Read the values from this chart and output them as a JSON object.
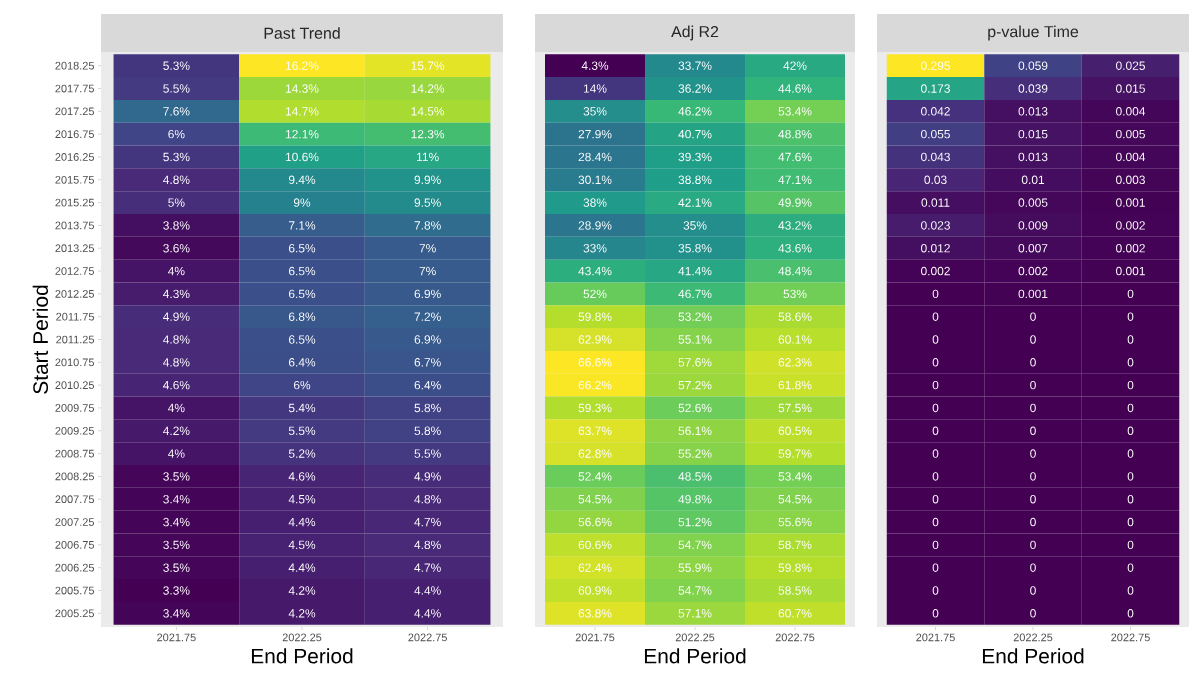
{
  "chart_data": [
    {
      "type": "heatmap",
      "title": "Past Trend",
      "xlabel": "End Period",
      "ylabel": "Start Period",
      "categories": [
        "2021.75",
        "2022.25",
        "2022.75"
      ],
      "y_categories": [
        "2018.25",
        "2017.75",
        "2017.25",
        "2016.75",
        "2016.25",
        "2015.75",
        "2015.25",
        "2013.75",
        "2013.25",
        "2012.75",
        "2012.25",
        "2011.75",
        "2011.25",
        "2010.75",
        "2010.25",
        "2009.75",
        "2009.25",
        "2008.75",
        "2008.25",
        "2007.75",
        "2007.25",
        "2006.75",
        "2006.25",
        "2005.75",
        "2005.25"
      ],
      "cells": [
        [
          5.3,
          16.2,
          15.7
        ],
        [
          5.5,
          14.3,
          14.2
        ],
        [
          7.6,
          14.7,
          14.5
        ],
        [
          6,
          12.1,
          12.3
        ],
        [
          5.3,
          10.6,
          11
        ],
        [
          4.8,
          9.4,
          9.9
        ],
        [
          5,
          9,
          9.5
        ],
        [
          3.8,
          7.1,
          7.8
        ],
        [
          3.6,
          6.5,
          7
        ],
        [
          4,
          6.5,
          7
        ],
        [
          4.3,
          6.5,
          6.9
        ],
        [
          4.9,
          6.8,
          7.2
        ],
        [
          4.8,
          6.5,
          6.9
        ],
        [
          4.8,
          6.4,
          6.7
        ],
        [
          4.6,
          6,
          6.4
        ],
        [
          4,
          5.4,
          5.8
        ],
        [
          4.2,
          5.5,
          5.8
        ],
        [
          4,
          5.2,
          5.5
        ],
        [
          3.5,
          4.6,
          4.9
        ],
        [
          3.4,
          4.5,
          4.8
        ],
        [
          3.4,
          4.4,
          4.7
        ],
        [
          3.5,
          4.5,
          4.8
        ],
        [
          3.5,
          4.4,
          4.7
        ],
        [
          3.3,
          4.2,
          4.4
        ],
        [
          3.4,
          4.2,
          4.4
        ]
      ],
      "cell_labels": [
        [
          "5.3%",
          "16.2%",
          "15.7%"
        ],
        [
          "5.5%",
          "14.3%",
          "14.2%"
        ],
        [
          "7.6%",
          "14.7%",
          "14.5%"
        ],
        [
          "6%",
          "12.1%",
          "12.3%"
        ],
        [
          "5.3%",
          "10.6%",
          "11%"
        ],
        [
          "4.8%",
          "9.4%",
          "9.9%"
        ],
        [
          "5%",
          "9%",
          "9.5%"
        ],
        [
          "3.8%",
          "7.1%",
          "7.8%"
        ],
        [
          "3.6%",
          "6.5%",
          "7%"
        ],
        [
          "4%",
          "6.5%",
          "7%"
        ],
        [
          "4.3%",
          "6.5%",
          "6.9%"
        ],
        [
          "4.9%",
          "6.8%",
          "7.2%"
        ],
        [
          "4.8%",
          "6.5%",
          "6.9%"
        ],
        [
          "4.8%",
          "6.4%",
          "6.7%"
        ],
        [
          "4.6%",
          "6%",
          "6.4%"
        ],
        [
          "4%",
          "5.4%",
          "5.8%"
        ],
        [
          "4.2%",
          "5.5%",
          "5.8%"
        ],
        [
          "4%",
          "5.2%",
          "5.5%"
        ],
        [
          "3.5%",
          "4.6%",
          "4.9%"
        ],
        [
          "3.4%",
          "4.5%",
          "4.8%"
        ],
        [
          "3.4%",
          "4.4%",
          "4.7%"
        ],
        [
          "3.5%",
          "4.5%",
          "4.8%"
        ],
        [
          "3.5%",
          "4.4%",
          "4.7%"
        ],
        [
          "3.3%",
          "4.2%",
          "4.4%"
        ],
        [
          "3.4%",
          "4.2%",
          "4.4%"
        ]
      ]
    },
    {
      "type": "heatmap",
      "title": "Adj R2",
      "xlabel": "End Period",
      "tick_labels": "x",
      "categories": [
        "2021.75",
        "2022.25",
        "2022.75"
      ],
      "y_categories": [
        "2018.25",
        "2017.75",
        "2017.25",
        "2016.75",
        "2016.25",
        "2015.75",
        "2015.25",
        "2013.75",
        "2013.25",
        "2012.75",
        "2012.25",
        "2011.75",
        "2011.25",
        "2010.75",
        "2010.25",
        "2009.75",
        "2009.25",
        "2008.75",
        "2008.25",
        "2007.75",
        "2007.25",
        "2006.75",
        "2006.25",
        "2005.75",
        "2005.25"
      ],
      "cells": [
        [
          4.3,
          33.7,
          42
        ],
        [
          14,
          36.2,
          44.6
        ],
        [
          35,
          46.2,
          53.4
        ],
        [
          27.9,
          40.7,
          48.8
        ],
        [
          28.4,
          39.3,
          47.6
        ],
        [
          30.1,
          38.8,
          47.1
        ],
        [
          38,
          42.1,
          49.9
        ],
        [
          28.9,
          35,
          43.2
        ],
        [
          33,
          35.8,
          43.6
        ],
        [
          43.4,
          41.4,
          48.4
        ],
        [
          52,
          46.7,
          53
        ],
        [
          59.8,
          53.2,
          58.6
        ],
        [
          62.9,
          55.1,
          60.1
        ],
        [
          66.6,
          57.6,
          62.3
        ],
        [
          66.2,
          57.2,
          61.8
        ],
        [
          59.3,
          52.6,
          57.5
        ],
        [
          63.7,
          56.1,
          60.5
        ],
        [
          62.8,
          55.2,
          59.7
        ],
        [
          52.4,
          48.5,
          53.4
        ],
        [
          54.5,
          49.8,
          54.5
        ],
        [
          56.6,
          51.2,
          55.6
        ],
        [
          60.6,
          54.7,
          58.7
        ],
        [
          62.4,
          55.9,
          59.8
        ],
        [
          60.9,
          54.7,
          58.5
        ],
        [
          63.8,
          57.1,
          60.7
        ]
      ],
      "cell_labels": [
        [
          "4.3%",
          "33.7%",
          "42%"
        ],
        [
          "14%",
          "36.2%",
          "44.6%"
        ],
        [
          "35%",
          "46.2%",
          "53.4%"
        ],
        [
          "27.9%",
          "40.7%",
          "48.8%"
        ],
        [
          "28.4%",
          "39.3%",
          "47.6%"
        ],
        [
          "30.1%",
          "38.8%",
          "47.1%"
        ],
        [
          "38%",
          "42.1%",
          "49.9%"
        ],
        [
          "28.9%",
          "35%",
          "43.2%"
        ],
        [
          "33%",
          "35.8%",
          "43.6%"
        ],
        [
          "43.4%",
          "41.4%",
          "48.4%"
        ],
        [
          "52%",
          "46.7%",
          "53%"
        ],
        [
          "59.8%",
          "53.2%",
          "58.6%"
        ],
        [
          "62.9%",
          "55.1%",
          "60.1%"
        ],
        [
          "66.6%",
          "57.6%",
          "62.3%"
        ],
        [
          "66.2%",
          "57.2%",
          "61.8%"
        ],
        [
          "59.3%",
          "52.6%",
          "57.5%"
        ],
        [
          "63.7%",
          "56.1%",
          "60.5%"
        ],
        [
          "62.8%",
          "55.2%",
          "59.7%"
        ],
        [
          "52.4%",
          "48.5%",
          "53.4%"
        ],
        [
          "54.5%",
          "49.8%",
          "54.5%"
        ],
        [
          "56.6%",
          "51.2%",
          "55.6%"
        ],
        [
          "60.6%",
          "54.7%",
          "58.7%"
        ],
        [
          "62.4%",
          "55.9%",
          "59.8%"
        ],
        [
          "60.9%",
          "54.7%",
          "58.5%"
        ],
        [
          "63.8%",
          "57.1%",
          "60.7%"
        ]
      ]
    },
    {
      "type": "heatmap",
      "title": "p-value Time",
      "xlabel": "End Period",
      "tick_labels": "x",
      "data_labels": true,
      "categories": [
        "2021.75",
        "2022.25",
        "2022.75"
      ],
      "y_categories": [
        "2018.25",
        "2017.75",
        "2017.25",
        "2016.75",
        "2016.25",
        "2015.75",
        "2015.25",
        "2013.75",
        "2013.25",
        "2012.75",
        "2012.25",
        "2011.75",
        "2011.25",
        "2010.75",
        "2010.25",
        "2009.75",
        "2009.25",
        "2008.75",
        "2008.25",
        "2007.75",
        "2007.25",
        "2006.75",
        "2006.25",
        "2005.75",
        "2005.25"
      ],
      "cells": [
        [
          0.295,
          0.059,
          0.025
        ],
        [
          0.173,
          0.039,
          0.015
        ],
        [
          0.042,
          0.013,
          0.004
        ],
        [
          0.055,
          0.015,
          0.005
        ],
        [
          0.043,
          0.013,
          0.004
        ],
        [
          0.03,
          0.01,
          0.003
        ],
        [
          0.011,
          0.005,
          0.001
        ],
        [
          0.023,
          0.009,
          0.002
        ],
        [
          0.012,
          0.007,
          0.002
        ],
        [
          0.002,
          0.002,
          0.001
        ],
        [
          0,
          0.001,
          0
        ],
        [
          0,
          0,
          0
        ],
        [
          0,
          0,
          0
        ],
        [
          0,
          0,
          0
        ],
        [
          0,
          0,
          0
        ],
        [
          0,
          0,
          0
        ],
        [
          0,
          0,
          0
        ],
        [
          0,
          0,
          0
        ],
        [
          0,
          0,
          0
        ],
        [
          0,
          0,
          0
        ],
        [
          0,
          0,
          0
        ],
        [
          0,
          0,
          0
        ],
        [
          0,
          0,
          0
        ],
        [
          0,
          0,
          0
        ],
        [
          0,
          0,
          0
        ]
      ]
    }
  ]
}
